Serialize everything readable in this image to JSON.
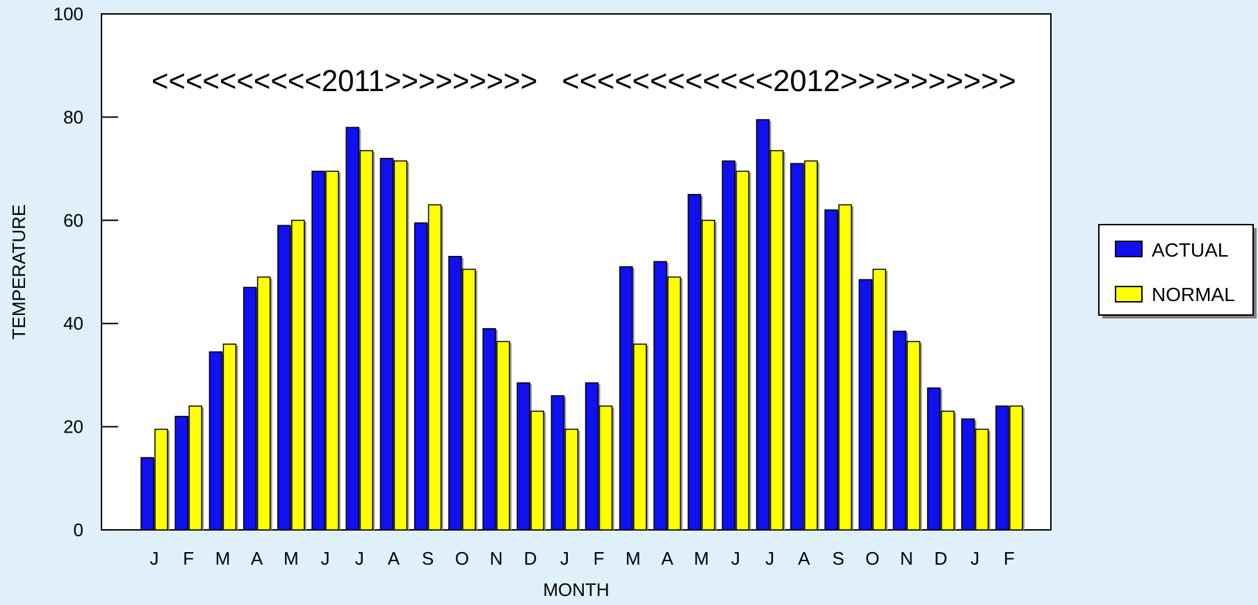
{
  "colors": {
    "background": "#dff0fb",
    "plot_background": "#ffffff",
    "actual": "#1010f0",
    "normal": "#ffff00",
    "outline": "#000000"
  },
  "chart_data": {
    "type": "bar",
    "xlabel": "MONTH",
    "ylabel": "TEMPERATURE",
    "ylim": [
      0,
      100
    ],
    "yticks": [
      0,
      20,
      40,
      60,
      80,
      100
    ],
    "grid": false,
    "legend_position": "right",
    "annotations": [
      {
        "text": "<<<<<<<<<<2011>>>>>>>>>",
        "span": [
          0,
          11
        ]
      },
      {
        "text": "<<<<<<<<<<<<2012>>>>>>>>>>",
        "span": [
          12,
          25
        ]
      }
    ],
    "categories": [
      "J",
      "F",
      "M",
      "A",
      "M",
      "J",
      "J",
      "A",
      "S",
      "O",
      "N",
      "D",
      "J",
      "F",
      "M",
      "A",
      "M",
      "J",
      "J",
      "A",
      "S",
      "O",
      "N",
      "D",
      "J",
      "F"
    ],
    "series": [
      {
        "name": "ACTUAL",
        "color": "#1010f0",
        "values": [
          14,
          22,
          34.5,
          47,
          59,
          69.5,
          78,
          72,
          59.5,
          53,
          39,
          28.5,
          26,
          28.5,
          51,
          52,
          65,
          71.5,
          79.5,
          71,
          62,
          48.5,
          38.5,
          27.5,
          21.5,
          24
        ]
      },
      {
        "name": "NORMAL",
        "color": "#ffff00",
        "values": [
          19.5,
          24,
          36,
          49,
          60,
          69.5,
          73.5,
          71.5,
          63,
          50.5,
          36.5,
          23,
          19.5,
          24,
          36,
          49,
          60,
          69.5,
          73.5,
          71.5,
          63,
          50.5,
          36.5,
          23,
          19.5,
          24
        ]
      }
    ]
  }
}
